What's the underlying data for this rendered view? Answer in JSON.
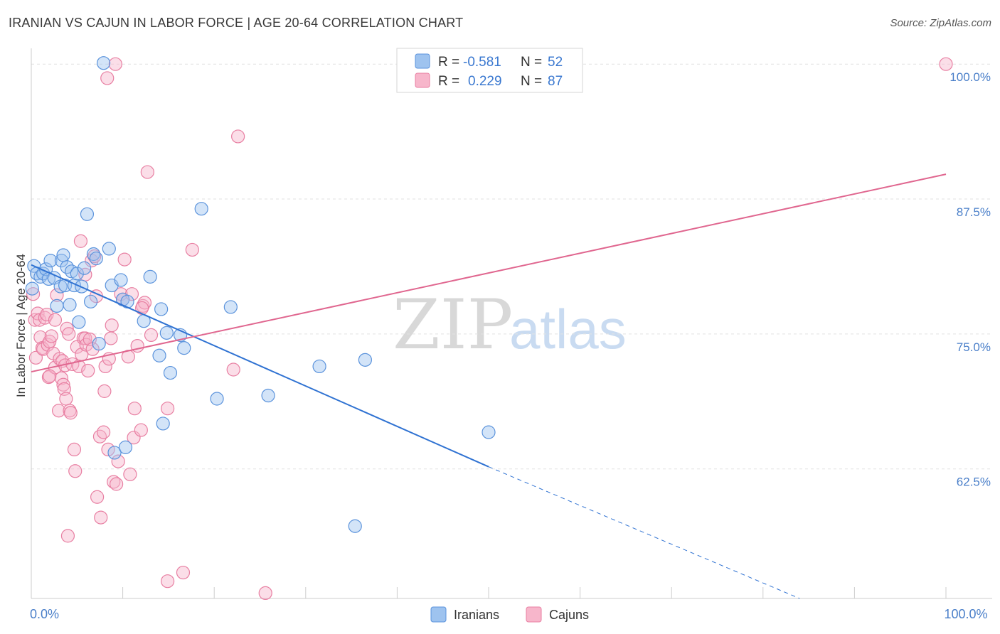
{
  "title": "IRANIAN VS CAJUN IN LABOR FORCE | AGE 20-64 CORRELATION CHART",
  "source": "Source: ZipAtlas.com",
  "watermark": {
    "zip": "ZIP",
    "atlas": "atlas"
  },
  "legend": {
    "rows": [
      {
        "r_label": "R =",
        "r_value": "-0.581",
        "n_label": "N =",
        "n_value": "52",
        "color": "#9ec3ef"
      },
      {
        "r_label": "R =",
        "r_value": "0.229",
        "n_label": "N =",
        "n_value": "87",
        "color": "#f7b6cb"
      }
    ]
  },
  "bottom_legend": [
    {
      "label": "Iranians",
      "color": "#9ec3ef"
    },
    {
      "label": "Cajuns",
      "color": "#f7b6cb"
    }
  ],
  "chart_data": {
    "type": "scatter",
    "xlabel": "",
    "ylabel": "In Labor Force | Age 20-64",
    "xlim": [
      0,
      100
    ],
    "ylim": [
      50.5,
      101
    ],
    "x_tick_labels": [
      {
        "value": 0,
        "label": "0.0%"
      },
      {
        "value": 100,
        "label": "100.0%"
      }
    ],
    "y_ticks": [
      {
        "value": 100,
        "label": "100.0%"
      },
      {
        "value": 87.5,
        "label": "87.5%"
      },
      {
        "value": 75,
        "label": "75.0%"
      },
      {
        "value": 62.5,
        "label": "62.5%"
      }
    ],
    "x_minor_ticks": [
      0,
      10,
      20,
      30,
      40,
      50,
      60,
      70,
      80,
      90,
      100
    ],
    "colors": {
      "iranians_fill": "#9ec3ef",
      "iranians_stroke": "#5b93dc",
      "iranians_line": "#2f72d2",
      "cajuns_fill": "#f7b6cb",
      "cajuns_stroke": "#e87fa2",
      "cajuns_line": "#e0668f"
    },
    "series": [
      {
        "name": "Iranians",
        "trend": {
          "x0": 0,
          "y0": 81.4,
          "x1": 50,
          "y1": 62.7,
          "dash_to_x": 84,
          "dash_to_y": 50.5
        },
        "points": [
          [
            0.1,
            79.2
          ],
          [
            0.3,
            81.3
          ],
          [
            0.6,
            80.6
          ],
          [
            1.0,
            80.3
          ],
          [
            1.3,
            80.6
          ],
          [
            1.6,
            81.0
          ],
          [
            1.9,
            80.1
          ],
          [
            2.1,
            81.8
          ],
          [
            2.5,
            80.2
          ],
          [
            2.8,
            77.6
          ],
          [
            3.2,
            79.4
          ],
          [
            3.3,
            81.8
          ],
          [
            3.5,
            82.3
          ],
          [
            3.7,
            79.5
          ],
          [
            3.9,
            81.2
          ],
          [
            4.2,
            77.7
          ],
          [
            4.4,
            80.8
          ],
          [
            4.7,
            79.5
          ],
          [
            5.0,
            80.6
          ],
          [
            5.2,
            76.1
          ],
          [
            5.5,
            79.4
          ],
          [
            5.8,
            81.1
          ],
          [
            6.1,
            86.1
          ],
          [
            6.5,
            78.0
          ],
          [
            6.8,
            82.4
          ],
          [
            7.1,
            82.0
          ],
          [
            7.4,
            74.1
          ],
          [
            7.9,
            100.1
          ],
          [
            8.5,
            82.9
          ],
          [
            8.8,
            79.5
          ],
          [
            9.1,
            64.0
          ],
          [
            9.8,
            80.0
          ],
          [
            10.0,
            78.2
          ],
          [
            10.3,
            64.5
          ],
          [
            10.5,
            78.0
          ],
          [
            12.3,
            76.2
          ],
          [
            13.0,
            80.3
          ],
          [
            14.0,
            73.0
          ],
          [
            14.2,
            77.3
          ],
          [
            14.4,
            66.7
          ],
          [
            14.8,
            75.1
          ],
          [
            15.2,
            71.4
          ],
          [
            16.3,
            74.9
          ],
          [
            16.7,
            73.7
          ],
          [
            18.6,
            86.6
          ],
          [
            20.3,
            69.0
          ],
          [
            21.8,
            77.5
          ],
          [
            25.9,
            69.3
          ],
          [
            31.5,
            72.0
          ],
          [
            36.5,
            72.6
          ],
          [
            50.0,
            65.9
          ],
          [
            35.4,
            57.2
          ]
        ]
      },
      {
        "name": "Cajuns",
        "trend": {
          "x0": 0,
          "y0": 71.5,
          "x1": 100,
          "y1": 89.8
        },
        "points": [
          [
            0.2,
            78.7
          ],
          [
            0.4,
            76.3
          ],
          [
            0.5,
            72.8
          ],
          [
            0.7,
            76.9
          ],
          [
            0.9,
            76.3
          ],
          [
            1.0,
            74.7
          ],
          [
            1.2,
            73.7
          ],
          [
            1.3,
            73.6
          ],
          [
            1.5,
            76.5
          ],
          [
            1.7,
            76.8
          ],
          [
            1.8,
            74.0
          ],
          [
            1.9,
            71.0
          ],
          [
            2.0,
            74.3
          ],
          [
            2.2,
            74.8
          ],
          [
            2.4,
            73.2
          ],
          [
            2.6,
            71.9
          ],
          [
            2.6,
            76.3
          ],
          [
            2.8,
            78.6
          ],
          [
            3.0,
            67.9
          ],
          [
            3.1,
            72.7
          ],
          [
            3.3,
            70.9
          ],
          [
            3.4,
            72.5
          ],
          [
            3.5,
            70.3
          ],
          [
            3.6,
            69.9
          ],
          [
            3.7,
            72.1
          ],
          [
            3.8,
            69.0
          ],
          [
            3.9,
            75.5
          ],
          [
            4.0,
            56.3
          ],
          [
            4.1,
            75.0
          ],
          [
            4.2,
            67.9
          ],
          [
            4.3,
            67.7
          ],
          [
            4.5,
            72.2
          ],
          [
            4.7,
            64.3
          ],
          [
            4.8,
            62.3
          ],
          [
            5.0,
            73.8
          ],
          [
            5.2,
            72.0
          ],
          [
            5.4,
            83.6
          ],
          [
            5.5,
            73.1
          ],
          [
            5.7,
            74.6
          ],
          [
            5.9,
            74.6
          ],
          [
            6.0,
            74.0
          ],
          [
            6.2,
            71.6
          ],
          [
            6.4,
            74.5
          ],
          [
            6.6,
            81.8
          ],
          [
            6.7,
            73.6
          ],
          [
            6.9,
            82.2
          ],
          [
            7.1,
            78.5
          ],
          [
            7.2,
            59.9
          ],
          [
            7.5,
            65.5
          ],
          [
            7.6,
            58.0
          ],
          [
            7.9,
            65.9
          ],
          [
            8.0,
            69.7
          ],
          [
            8.1,
            72.0
          ],
          [
            8.3,
            98.7
          ],
          [
            8.4,
            64.3
          ],
          [
            8.5,
            72.7
          ],
          [
            8.7,
            74.6
          ],
          [
            8.8,
            75.8
          ],
          [
            9.0,
            61.3
          ],
          [
            9.2,
            100.0
          ],
          [
            9.3,
            61.1
          ],
          [
            9.5,
            63.2
          ],
          [
            9.8,
            78.7
          ],
          [
            10.0,
            78.2
          ],
          [
            10.2,
            81.9
          ],
          [
            10.6,
            72.9
          ],
          [
            10.8,
            62.0
          ],
          [
            11.0,
            78.7
          ],
          [
            11.2,
            65.4
          ],
          [
            11.3,
            68.1
          ],
          [
            11.6,
            73.9
          ],
          [
            12.0,
            66.1
          ],
          [
            12.2,
            77.6
          ],
          [
            12.4,
            77.9
          ],
          [
            12.7,
            90.0
          ],
          [
            13.1,
            74.9
          ],
          [
            14.9,
            68.1
          ],
          [
            14.9,
            52.1
          ],
          [
            16.6,
            52.9
          ],
          [
            17.6,
            82.8
          ],
          [
            22.1,
            71.7
          ],
          [
            22.6,
            93.3
          ],
          [
            25.6,
            51.0
          ],
          [
            100.0,
            100.0
          ],
          [
            5.9,
            80.5
          ],
          [
            12.1,
            77.4
          ],
          [
            2.0,
            71.1
          ]
        ]
      }
    ]
  }
}
